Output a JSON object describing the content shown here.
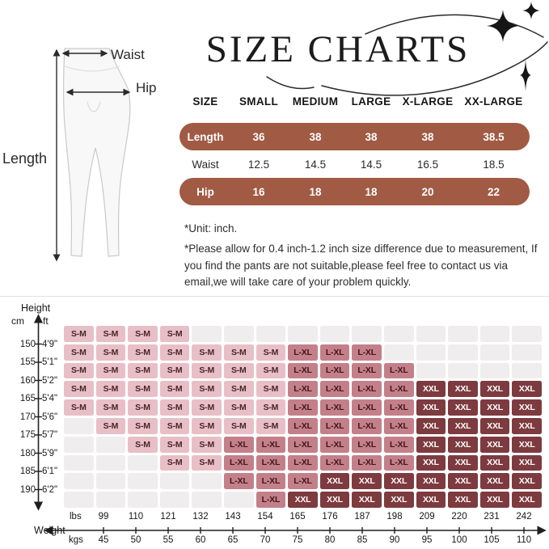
{
  "title": "SIZE CHARTS",
  "diagram": {
    "waist_label": "Waist",
    "hip_label": "Hip",
    "length_label": "Length"
  },
  "size_table": {
    "columns": [
      "SIZE",
      "SMALL",
      "MEDIUM",
      "LARGE",
      "X-LARGE",
      "XX-LARGE"
    ],
    "rows": [
      {
        "label": "Length",
        "values": [
          "36",
          "38",
          "38",
          "38",
          "38.5"
        ]
      },
      {
        "label": "Waist",
        "values": [
          "12.5",
          "14.5",
          "14.5",
          "16.5",
          "18.5"
        ]
      },
      {
        "label": "Hip",
        "values": [
          "16",
          "18",
          "18",
          "20",
          "22"
        ]
      }
    ]
  },
  "notes": {
    "unit": "*Unit: inch.",
    "disclaimer": "*Please allow for 0.4 inch-1.2 inch size difference due to measurement,   If you find the pants are not suitable,please feel free to contact us via email,we will take care of your problem quickly."
  },
  "chart_data": {
    "type": "heatmap",
    "title": "Height / Weight size recommendation grid",
    "x_axis": {
      "label": "Weight",
      "units": [
        "lbs",
        "kgs"
      ],
      "lbs": [
        "99",
        "110",
        "121",
        "132",
        "143",
        "154",
        "165",
        "176",
        "187",
        "198",
        "209",
        "220",
        "231",
        "242"
      ],
      "kgs": [
        "45",
        "50",
        "55",
        "60",
        "65",
        "70",
        "75",
        "80",
        "85",
        "90",
        "95",
        "100",
        "105",
        "110"
      ]
    },
    "y_axis": {
      "label": "Height",
      "units": [
        "cm",
        "ft"
      ],
      "cm": [
        "150",
        "155",
        "160",
        "165",
        "170",
        "175",
        "180",
        "185",
        "190"
      ],
      "ft": [
        "4'9\"",
        "5'1\"",
        "5'2\"",
        "5'4\"",
        "5'6\"",
        "5'7\"",
        "5'9\"",
        "6'1\"",
        "6'2\""
      ]
    },
    "sizes": [
      "S-M",
      "L-XL",
      "XXL"
    ],
    "colors": {
      "S-M": "#E8BFC6",
      "L-XL": "#C4808A",
      "XXL": "#7D3B40",
      "empty": "#EFEDED",
      "accent": "#A15A43"
    },
    "cells": [
      [
        "S-M",
        "S-M",
        "S-M",
        "S-M",
        "",
        "",
        "",
        "",
        "",
        "",
        "",
        "",
        "",
        "",
        ""
      ],
      [
        "S-M",
        "S-M",
        "S-M",
        "S-M",
        "S-M",
        "S-M",
        "S-M",
        "L-XL",
        "L-XL",
        "L-XL",
        "",
        "",
        "",
        "",
        ""
      ],
      [
        "S-M",
        "S-M",
        "S-M",
        "S-M",
        "S-M",
        "S-M",
        "S-M",
        "L-XL",
        "L-XL",
        "L-XL",
        "L-XL",
        "",
        "",
        "",
        ""
      ],
      [
        "S-M",
        "S-M",
        "S-M",
        "S-M",
        "S-M",
        "S-M",
        "S-M",
        "L-XL",
        "L-XL",
        "L-XL",
        "L-XL",
        "XXL",
        "XXL",
        "XXL",
        "XXL"
      ],
      [
        "S-M",
        "S-M",
        "S-M",
        "S-M",
        "S-M",
        "S-M",
        "S-M",
        "L-XL",
        "L-XL",
        "L-XL",
        "L-XL",
        "XXL",
        "XXL",
        "XXL",
        "XXL"
      ],
      [
        "",
        "S-M",
        "S-M",
        "S-M",
        "S-M",
        "S-M",
        "S-M",
        "L-XL",
        "L-XL",
        "L-XL",
        "L-XL",
        "XXL",
        "XXL",
        "XXL",
        "XXL"
      ],
      [
        "",
        "",
        "S-M",
        "S-M",
        "S-M",
        "L-XL",
        "L-XL",
        "L-XL",
        "L-XL",
        "L-XL",
        "L-XL",
        "XXL",
        "XXL",
        "XXL",
        "XXL"
      ],
      [
        "",
        "",
        "",
        "S-M",
        "S-M",
        "L-XL",
        "L-XL",
        "L-XL",
        "L-XL",
        "L-XL",
        "L-XL",
        "XXL",
        "XXL",
        "XXL",
        "XXL"
      ],
      [
        "",
        "",
        "",
        "",
        "",
        "L-XL",
        "L-XL",
        "L-XL",
        "XXL",
        "XXL",
        "XXL",
        "XXL",
        "XXL",
        "XXL",
        "XXL"
      ],
      [
        "",
        "",
        "",
        "",
        "",
        "",
        "L-XL",
        "XXL",
        "XXL",
        "XXL",
        "XXL",
        "XXL",
        "XXL",
        "XXL",
        "XXL"
      ]
    ]
  }
}
